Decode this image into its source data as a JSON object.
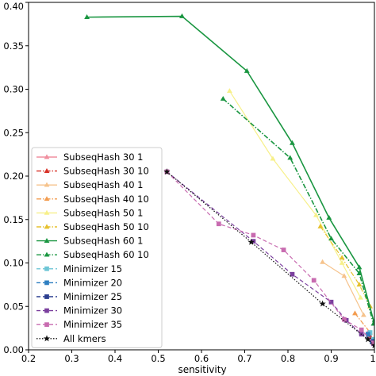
{
  "chart_data": {
    "type": "line",
    "title": "",
    "xlabel": "sensitivity",
    "ylabel": "",
    "xlim": [
      0.2,
      1.0
    ],
    "ylim": [
      0.0,
      0.4
    ],
    "xticks": [
      0.2,
      0.3,
      0.4,
      0.5,
      0.6,
      0.7,
      0.8,
      0.9,
      1.0
    ],
    "xtick_labels": [
      "0.2",
      "0.3",
      "0.4",
      "0.5",
      "0.6",
      "0.7",
      "0.8",
      "0.9",
      "1"
    ],
    "yticks": [
      0.0,
      0.05,
      0.1,
      0.15,
      0.2,
      0.25,
      0.3,
      0.35,
      0.4
    ],
    "ytick_labels": [
      "0.00",
      "0.05",
      "0.10",
      "0.15",
      "0.20",
      "0.25",
      "0.30",
      "0.35",
      "0.40"
    ],
    "grid": false,
    "legend_position": "lower-left",
    "series": [
      {
        "name": "SubseqHash 30 1",
        "color": "#f08f9f",
        "dash": "solid",
        "marker": "triangle",
        "x": [
          0.985,
          0.998
        ],
        "y": [
          0.02,
          0.012
        ]
      },
      {
        "name": "SubseqHash 30 10",
        "color": "#d73027",
        "dash": "dashdot",
        "marker": "triangle",
        "x": [
          0.99,
          0.998
        ],
        "y": [
          0.015,
          0.008
        ]
      },
      {
        "name": "SubseqHash 40 1",
        "color": "#f6c38c",
        "dash": "solid",
        "marker": "triangle",
        "x": [
          0.88,
          0.93,
          0.975
        ],
        "y": [
          0.101,
          0.085,
          0.04
        ]
      },
      {
        "name": "SubseqHash 40 10",
        "color": "#f39c4f",
        "dash": "dashdot",
        "marker": "triangle",
        "x": [
          0.955,
          0.99
        ],
        "y": [
          0.042,
          0.02
        ]
      },
      {
        "name": "SubseqHash 50 1",
        "color": "#f7f08a",
        "dash": "solid",
        "marker": "triangle",
        "x": [
          0.665,
          0.765,
          0.865,
          0.925,
          0.968
        ],
        "y": [
          0.298,
          0.22,
          0.155,
          0.1,
          0.06
        ]
      },
      {
        "name": "SubseqHash 50 10",
        "color": "#e6c12e",
        "dash": "dashdot",
        "marker": "triangle",
        "x": [
          0.875,
          0.925,
          0.965,
          0.99
        ],
        "y": [
          0.142,
          0.106,
          0.075,
          0.05
        ]
      },
      {
        "name": "SubseqHash 60 1",
        "color": "#1a9641",
        "dash": "solid",
        "marker": "triangle",
        "x": [
          0.335,
          0.555,
          0.705,
          0.81,
          0.895,
          0.965,
          1.0
        ],
        "y": [
          0.383,
          0.384,
          0.321,
          0.238,
          0.152,
          0.095,
          0.03
        ]
      },
      {
        "name": "SubseqHash 60 10",
        "color": "#1a9641",
        "dash": "dashdot",
        "marker": "triangle",
        "x": [
          0.65,
          0.805,
          0.9,
          0.965,
          0.998
        ],
        "y": [
          0.289,
          0.221,
          0.128,
          0.088,
          0.03
        ]
      },
      {
        "name": "Minimizer 15",
        "color": "#6ec6d6",
        "dash": "dashed",
        "marker": "square",
        "x": [
          0.99,
          0.998
        ],
        "y": [
          0.02,
          0.012
        ]
      },
      {
        "name": "Minimizer 20",
        "color": "#2f7fc1",
        "dash": "dashed",
        "marker": "square",
        "x": [
          0.985,
          0.997
        ],
        "y": [
          0.018,
          0.01
        ]
      },
      {
        "name": "Minimizer 25",
        "color": "#2c3e8f",
        "dash": "dashed",
        "marker": "square",
        "x": [
          0.97,
          0.995
        ],
        "y": [
          0.02,
          0.009
        ]
      },
      {
        "name": "Minimizer 30",
        "color": "#7b3f9e",
        "dash": "dashed",
        "marker": "square",
        "x": [
          0.52,
          0.72,
          0.81,
          0.9,
          0.935,
          0.97,
          0.998
        ],
        "y": [
          0.205,
          0.125,
          0.087,
          0.055,
          0.034,
          0.018,
          0.007
        ]
      },
      {
        "name": "Minimizer 35",
        "color": "#c86bb0",
        "dash": "dashed",
        "marker": "square",
        "x": [
          0.52,
          0.64,
          0.72,
          0.79,
          0.86,
          0.93,
          0.97,
          0.998
        ],
        "y": [
          0.205,
          0.145,
          0.132,
          0.115,
          0.08,
          0.035,
          0.023,
          0.008
        ]
      },
      {
        "name": "All kmers",
        "color": "#111111",
        "dash": "dotted",
        "marker": "star",
        "x": [
          0.52,
          0.715,
          0.88,
          0.985,
          1.0
        ],
        "y": [
          0.205,
          0.124,
          0.053,
          0.012,
          0.005
        ]
      }
    ]
  }
}
